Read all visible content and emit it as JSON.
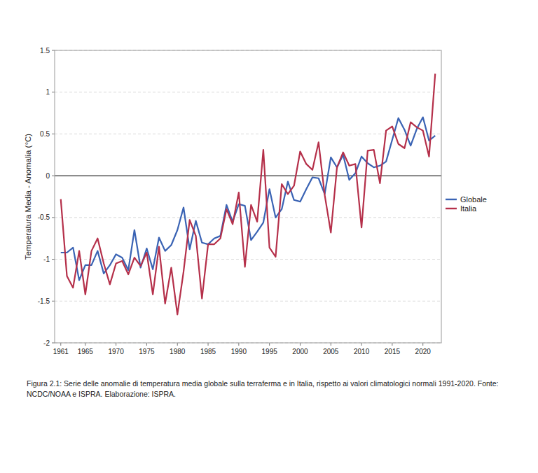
{
  "chart_data": {
    "type": "line",
    "y_label": "Temperatura Media - Anomalia (°C)",
    "caption": "Figura 2.1: Serie delle anomalie di temperatura media globale sulla terraferma e in Italia, rispetto ai valori climatologici normali 1991-2020. Fonte: NCDC/NOAA e ISPRA. Elaborazione: ISPRA.",
    "x": [
      1961,
      1962,
      1963,
      1964,
      1965,
      1966,
      1967,
      1968,
      1969,
      1970,
      1971,
      1972,
      1973,
      1974,
      1975,
      1976,
      1977,
      1978,
      1979,
      1980,
      1981,
      1982,
      1983,
      1984,
      1985,
      1986,
      1987,
      1988,
      1989,
      1990,
      1991,
      1992,
      1993,
      1994,
      1995,
      1996,
      1997,
      1998,
      1999,
      2000,
      2001,
      2002,
      2003,
      2004,
      2005,
      2006,
      2007,
      2008,
      2009,
      2010,
      2011,
      2012,
      2013,
      2014,
      2015,
      2016,
      2017,
      2018,
      2019,
      2020,
      2021,
      2022
    ],
    "series": [
      {
        "name": "Globale",
        "color": "#3a63b4",
        "values": [
          -0.92,
          -0.92,
          -0.86,
          -1.25,
          -1.07,
          -1.07,
          -0.9,
          -1.17,
          -1.07,
          -0.94,
          -0.98,
          -1.13,
          -0.65,
          -1.1,
          -0.87,
          -1.12,
          -0.74,
          -0.9,
          -0.83,
          -0.65,
          -0.38,
          -0.88,
          -0.54,
          -0.8,
          -0.82,
          -0.75,
          -0.72,
          -0.35,
          -0.55,
          -0.34,
          -0.36,
          -0.77,
          -0.67,
          -0.56,
          -0.16,
          -0.5,
          -0.4,
          -0.07,
          -0.29,
          -0.31,
          -0.16,
          -0.02,
          -0.03,
          -0.22,
          0.22,
          0.1,
          0.25,
          -0.05,
          0.03,
          0.23,
          0.15,
          0.1,
          0.12,
          0.17,
          0.43,
          0.69,
          0.55,
          0.36,
          0.56,
          0.7,
          0.42,
          0.48
        ]
      },
      {
        "name": "Italia",
        "color": "#b5304a",
        "values": [
          -0.28,
          -1.2,
          -1.34,
          -0.9,
          -1.42,
          -0.9,
          -0.75,
          -1.05,
          -1.3,
          -1.05,
          -1.02,
          -1.18,
          -0.98,
          -1.08,
          -0.92,
          -1.42,
          -0.85,
          -1.53,
          -1.1,
          -1.66,
          -1.15,
          -0.53,
          -0.72,
          -1.47,
          -0.82,
          -0.82,
          -0.75,
          -0.4,
          -0.58,
          -0.2,
          -1.09,
          -0.35,
          -0.55,
          0.31,
          -0.86,
          -0.97,
          -0.1,
          -0.22,
          -0.12,
          0.29,
          0.14,
          0.07,
          0.4,
          -0.23,
          -0.68,
          0.1,
          0.28,
          0.12,
          0.14,
          -0.62,
          0.3,
          0.31,
          -0.09,
          0.54,
          0.59,
          0.38,
          0.33,
          0.64,
          0.58,
          0.54,
          0.23,
          1.22
        ]
      }
    ],
    "xlim": [
      1960,
      2023
    ],
    "xticks": [
      1961,
      1965,
      1970,
      1975,
      1980,
      1985,
      1990,
      1995,
      2000,
      2005,
      2010,
      2015,
      2020
    ],
    "ylim": [
      -2,
      1.5
    ],
    "yticks": [
      -2,
      -1.5,
      -1,
      -0.5,
      0,
      0.5,
      1,
      1.5
    ],
    "grid": true,
    "legend": "right"
  }
}
